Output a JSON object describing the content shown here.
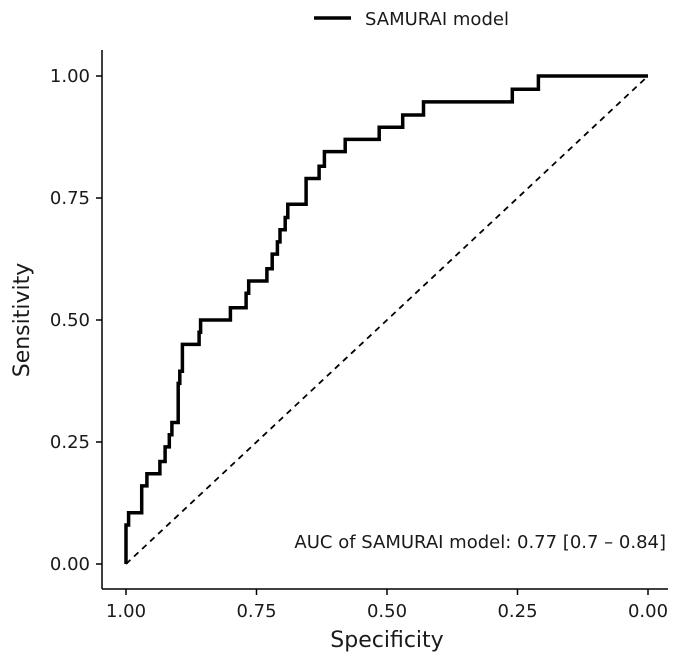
{
  "chart_data": {
    "type": "line",
    "title": "",
    "xlabel": "Specificity",
    "ylabel": "Sensitivity",
    "xlim": [
      1.0,
      0.0
    ],
    "ylim": [
      0.0,
      1.0
    ],
    "x_reversed": true,
    "x_ticks": [
      1.0,
      0.75,
      0.5,
      0.25,
      0.0
    ],
    "x_tick_labels": [
      "1.00",
      "0.75",
      "0.50",
      "0.25",
      "0.00"
    ],
    "y_ticks": [
      0.0,
      0.25,
      0.5,
      0.75,
      1.0
    ],
    "y_tick_labels": [
      "0.00",
      "0.25",
      "0.50",
      "0.75",
      "1.00"
    ],
    "grid": false,
    "legend_position": "top",
    "series": [
      {
        "name": "SAMURAI model",
        "color": "#000000",
        "style": "solid-step",
        "points": [
          [
            1.0,
            0.0
          ],
          [
            1.0,
            0.08
          ],
          [
            0.995,
            0.08
          ],
          [
            0.995,
            0.105
          ],
          [
            0.97,
            0.105
          ],
          [
            0.97,
            0.16
          ],
          [
            0.96,
            0.16
          ],
          [
            0.96,
            0.185
          ],
          [
            0.935,
            0.185
          ],
          [
            0.935,
            0.21
          ],
          [
            0.925,
            0.21
          ],
          [
            0.925,
            0.24
          ],
          [
            0.917,
            0.24
          ],
          [
            0.917,
            0.265
          ],
          [
            0.912,
            0.265
          ],
          [
            0.912,
            0.29
          ],
          [
            0.9,
            0.29
          ],
          [
            0.9,
            0.37
          ],
          [
            0.897,
            0.37
          ],
          [
            0.897,
            0.395
          ],
          [
            0.892,
            0.395
          ],
          [
            0.892,
            0.45
          ],
          [
            0.86,
            0.45
          ],
          [
            0.86,
            0.475
          ],
          [
            0.857,
            0.475
          ],
          [
            0.857,
            0.5
          ],
          [
            0.8,
            0.5
          ],
          [
            0.8,
            0.525
          ],
          [
            0.77,
            0.525
          ],
          [
            0.77,
            0.555
          ],
          [
            0.765,
            0.555
          ],
          [
            0.765,
            0.58
          ],
          [
            0.73,
            0.58
          ],
          [
            0.73,
            0.605
          ],
          [
            0.72,
            0.605
          ],
          [
            0.72,
            0.635
          ],
          [
            0.71,
            0.635
          ],
          [
            0.71,
            0.66
          ],
          [
            0.705,
            0.66
          ],
          [
            0.705,
            0.685
          ],
          [
            0.695,
            0.685
          ],
          [
            0.695,
            0.71
          ],
          [
            0.69,
            0.71
          ],
          [
            0.69,
            0.737
          ],
          [
            0.655,
            0.737
          ],
          [
            0.655,
            0.79
          ],
          [
            0.63,
            0.79
          ],
          [
            0.63,
            0.815
          ],
          [
            0.62,
            0.815
          ],
          [
            0.62,
            0.845
          ],
          [
            0.58,
            0.845
          ],
          [
            0.58,
            0.87
          ],
          [
            0.515,
            0.87
          ],
          [
            0.515,
            0.895
          ],
          [
            0.47,
            0.895
          ],
          [
            0.47,
            0.92
          ],
          [
            0.43,
            0.92
          ],
          [
            0.43,
            0.947
          ],
          [
            0.26,
            0.947
          ],
          [
            0.26,
            0.973
          ],
          [
            0.21,
            0.973
          ],
          [
            0.21,
            1.0
          ],
          [
            0.0,
            1.0
          ]
        ]
      },
      {
        "name": "",
        "color": "#000000",
        "style": "dashed",
        "points": [
          [
            1.0,
            0.0
          ],
          [
            0.0,
            1.0
          ]
        ]
      }
    ],
    "legend": [
      {
        "label": "SAMURAI model",
        "color": "#000000"
      }
    ],
    "annotation": "AUC of SAMURAI model: 0.77 [0.7 – 0.84]"
  }
}
